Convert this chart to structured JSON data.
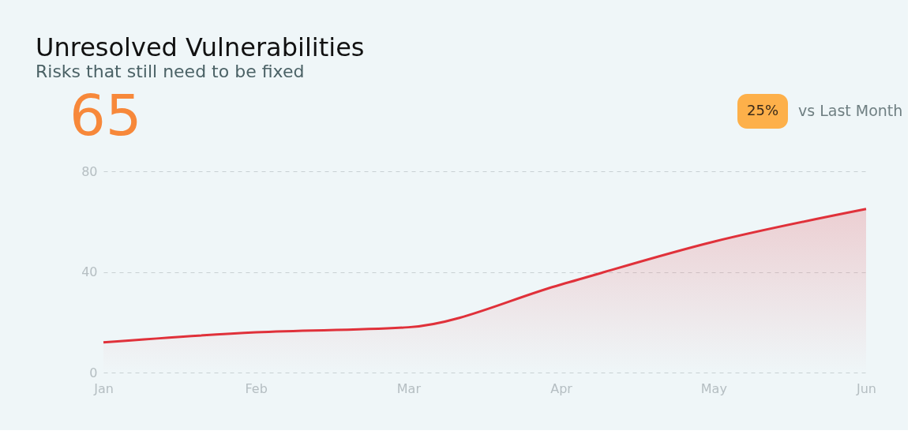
{
  "chart_data": {
    "type": "area",
    "title": "Unresolved Vulnerabilities",
    "subtitle": "Risks that still need to be fixed",
    "annotations": [
      "65",
      "25%",
      "vs Last Month"
    ],
    "categories": [
      "Jan",
      "Feb",
      "Mar",
      "Apr",
      "May",
      "Jun"
    ],
    "series": [
      {
        "color": "#e0313a",
        "values": [
          12,
          16,
          18,
          35,
          52,
          65
        ]
      }
    ],
    "ylim": [
      0,
      80
    ],
    "yticks": [
      0,
      40,
      80
    ],
    "grid": "y",
    "marker": "none",
    "line_style": "solid"
  }
}
